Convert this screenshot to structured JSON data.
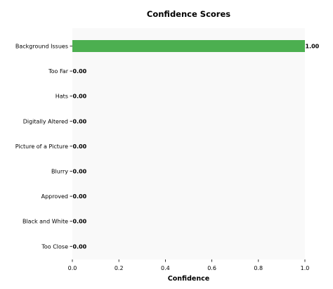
{
  "chart_data": {
    "type": "bar",
    "orientation": "horizontal",
    "title": "Confidence Scores",
    "xlabel": "Confidence",
    "ylabel": "",
    "xlim": [
      0,
      1
    ],
    "xticks": [
      0.0,
      0.2,
      0.4,
      0.6,
      0.8,
      1.0
    ],
    "xtick_labels": [
      "0.0",
      "0.2",
      "0.4",
      "0.6",
      "0.8",
      "1.0"
    ],
    "grid": false,
    "categories": [
      "Background Issues",
      "Too Far",
      "Hats",
      "Digitally Altered",
      "Picture of a Picture",
      "Blurry",
      "Approved",
      "Black and White",
      "Too Close"
    ],
    "values": [
      1.0,
      0.0,
      0.0,
      0.0,
      0.0,
      0.0,
      0.0,
      0.0,
      0.0
    ],
    "value_labels": [
      "1.00",
      "0.00",
      "0.00",
      "0.00",
      "0.00",
      "0.00",
      "0.00",
      "0.00",
      "0.00"
    ],
    "colors": {
      "bar": "#4caf50",
      "plot_background": "#f9f9f9",
      "axis": "#000000"
    }
  }
}
